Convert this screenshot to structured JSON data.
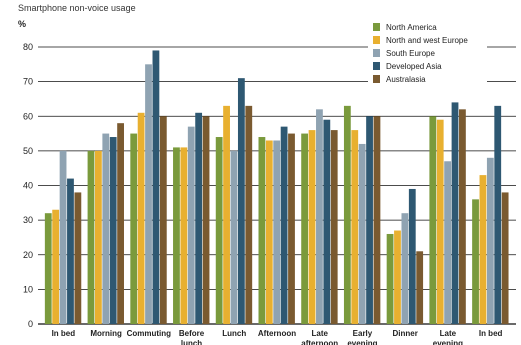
{
  "chart_data": {
    "type": "bar",
    "title": "Smartphone non-voice usage",
    "ylabel": "%",
    "xlabel": "",
    "ylim": [
      0,
      80
    ],
    "yticks": [
      0,
      10,
      20,
      30,
      40,
      50,
      60,
      70,
      80
    ],
    "grid": "horizontal",
    "legend_position": "top-right",
    "categories": [
      "In bed",
      "Morning",
      "Commuting",
      "Before lunch",
      "Lunch",
      "Afternoon",
      "Late afternoon",
      "Early evening",
      "Dinner",
      "Late evening",
      "In bed"
    ],
    "series": [
      {
        "name": "North America",
        "color": "#7a9a3c",
        "values": [
          32,
          50,
          55,
          51,
          54,
          54,
          55,
          63,
          26,
          60,
          36
        ]
      },
      {
        "name": "North and west Europe",
        "color": "#e8b030",
        "values": [
          33,
          50,
          61,
          51,
          63,
          53,
          56,
          56,
          27,
          59,
          43
        ]
      },
      {
        "name": "South Europe",
        "color": "#8fa3b2",
        "values": [
          50,
          55,
          75,
          57,
          50,
          53,
          62,
          52,
          32,
          47,
          48
        ]
      },
      {
        "name": "Developed Asia",
        "color": "#2e5872",
        "values": [
          42,
          54,
          79,
          61,
          71,
          57,
          59,
          60,
          39,
          64,
          63
        ]
      },
      {
        "name": "Australasia",
        "color": "#7a5a30",
        "values": [
          38,
          58,
          60,
          60,
          63,
          55,
          56,
          60,
          21,
          62,
          38
        ]
      }
    ]
  }
}
